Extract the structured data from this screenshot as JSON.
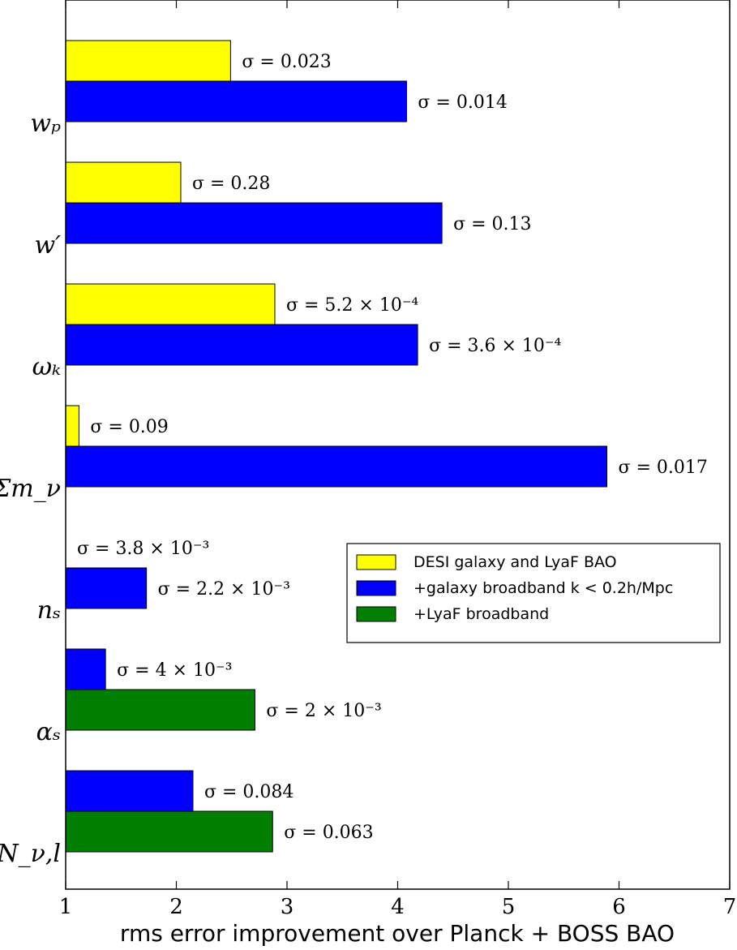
{
  "chart_data": {
    "type": "bar",
    "orientation": "horizontal",
    "xlabel": "rms error improvement over Planck + BOSS BAO",
    "ylabel": "",
    "xlim": [
      1,
      7
    ],
    "xticks": [
      1,
      2,
      3,
      4,
      5,
      6,
      7
    ],
    "grid": false,
    "legend_position": "center-right",
    "series": [
      {
        "name": "DESI galaxy and LyaF BAO",
        "color": "#ffff00"
      },
      {
        "name": "+galaxy broadband k < 0.2h/Mpc",
        "color": "#0000ff"
      },
      {
        "name": "+LyaF broadband",
        "color": "#007f00"
      }
    ],
    "categories": [
      {
        "label": "w_p",
        "display": "wₚ",
        "bars": [
          {
            "series": 0,
            "value": 2.49,
            "annotation": "σ = 0.023"
          },
          {
            "series": 1,
            "value": 4.08,
            "annotation": "σ = 0.014"
          }
        ]
      },
      {
        "label": "w'",
        "display": "w′",
        "bars": [
          {
            "series": 0,
            "value": 2.04,
            "annotation": "σ = 0.28"
          },
          {
            "series": 1,
            "value": 4.4,
            "annotation": "σ = 0.13"
          }
        ]
      },
      {
        "label": "omega_k",
        "display": "ωₖ",
        "bars": [
          {
            "series": 0,
            "value": 2.89,
            "annotation": "σ = 5.2 × 10⁻⁴"
          },
          {
            "series": 1,
            "value": 4.18,
            "annotation": "σ = 3.6 × 10⁻⁴"
          }
        ]
      },
      {
        "label": "Sum m_nu",
        "display": "Σm_ν",
        "bars": [
          {
            "series": 0,
            "value": 1.12,
            "annotation": "σ = 0.09"
          },
          {
            "series": 1,
            "value": 5.89,
            "annotation": "σ = 0.017"
          }
        ]
      },
      {
        "label": "n_s",
        "display": "nₛ",
        "bars": [
          {
            "series": 0,
            "value": 1.0,
            "annotation": "σ = 3.8 × 10⁻³"
          },
          {
            "series": 1,
            "value": 1.73,
            "annotation": "σ = 2.2 × 10⁻³"
          }
        ]
      },
      {
        "label": "alpha_s",
        "display": "αₛ",
        "bars": [
          {
            "series": 1,
            "value": 1.36,
            "annotation": "σ = 4 × 10⁻³"
          },
          {
            "series": 2,
            "value": 2.71,
            "annotation": "σ = 2 × 10⁻³"
          }
        ]
      },
      {
        "label": "N_nu,l",
        "display": "N_ν,l",
        "bars": [
          {
            "series": 1,
            "value": 2.15,
            "annotation": "σ = 0.084"
          },
          {
            "series": 2,
            "value": 2.87,
            "annotation": "σ = 0.063"
          }
        ]
      }
    ]
  }
}
